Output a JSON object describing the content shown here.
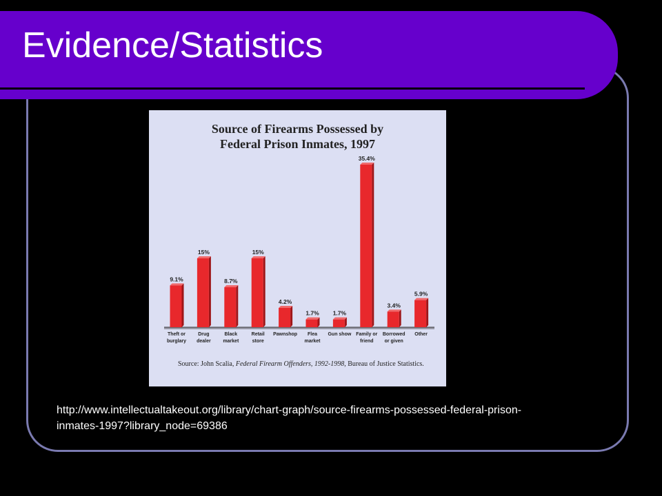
{
  "slide": {
    "title": "Evidence/Statistics",
    "url_line1": "http://www.intellectualtakeout.org/library/chart-graph/source-firearms-possessed-federal-prison-",
    "url_line2": "inmates-1997?library_node=69386"
  },
  "colors": {
    "background": "#000000",
    "title_bar": "#6600cc",
    "frame_border": "#7a7ab0",
    "chart_bg": "#dcdff3",
    "bar": "#e8282c"
  },
  "chart_data": {
    "type": "bar",
    "title_line1": "Source of Firearms Possessed by",
    "title_line2": "Federal Prison Inmates, 1997",
    "categories": [
      [
        "Theft or",
        "burglary"
      ],
      [
        "Drug",
        "dealer"
      ],
      [
        "Black",
        "market"
      ],
      [
        "Retail",
        "store"
      ],
      [
        "Pawnshop"
      ],
      [
        "Flea",
        "market"
      ],
      [
        "Gun show"
      ],
      [
        "Family or",
        "friend"
      ],
      [
        "Borrowed",
        "or given"
      ],
      [
        "Other"
      ]
    ],
    "values": [
      9.1,
      15,
      8.7,
      15,
      4.2,
      1.7,
      1.7,
      35.4,
      3.4,
      5.9
    ],
    "value_labels": [
      "9.1%",
      "15%",
      "8.7%",
      "15%",
      "4.2%",
      "1.7%",
      "1.7%",
      "35.4%",
      "3.4%",
      "5.9%"
    ],
    "unit": "%",
    "source_prefix": "Source:   John Scalia, ",
    "source_italic": "Federal Firearm Offenders, 1992-1998",
    "source_suffix": ", Bureau of Justice Statistics."
  }
}
